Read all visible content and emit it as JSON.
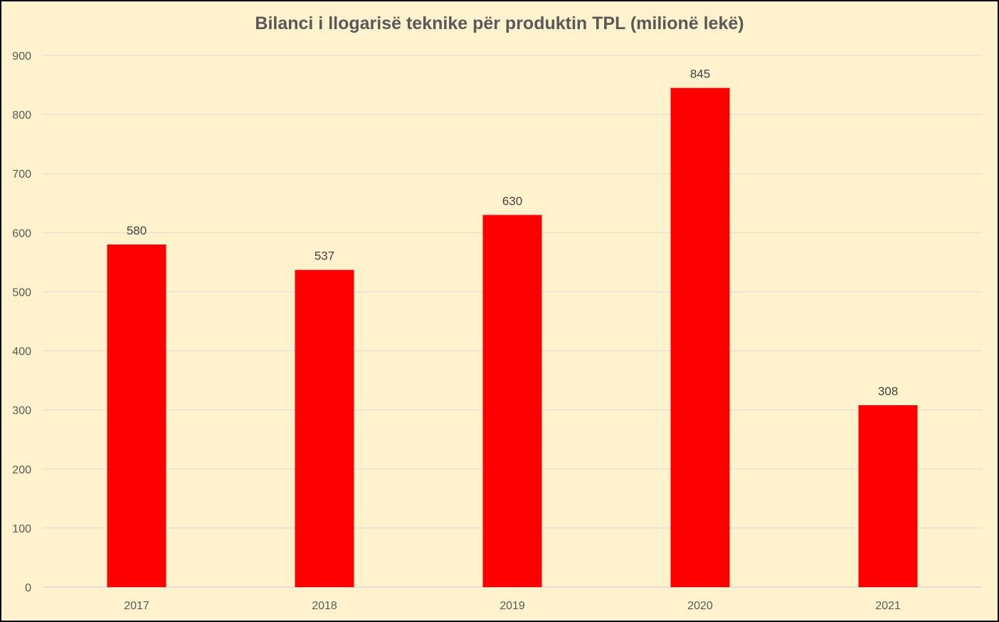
{
  "chart_data": {
    "type": "bar",
    "title": "Bilanci i llogarisë teknike për produktin TPL (milionë lekë)",
    "xlabel": "",
    "ylabel": "",
    "categories": [
      "2017",
      "2018",
      "2019",
      "2020",
      "2021"
    ],
    "values": [
      580,
      537,
      630,
      845,
      308
    ],
    "ylim": [
      0,
      900
    ],
    "yticks": [
      0,
      100,
      200,
      300,
      400,
      500,
      600,
      700,
      800,
      900
    ],
    "grid": true,
    "legend": "none",
    "data_labels": true
  },
  "colors": {
    "background": "#fff2cc",
    "bar": "#ff0000",
    "grid": "#d9d9d9",
    "text": "#595959",
    "label_text": "#404040"
  }
}
